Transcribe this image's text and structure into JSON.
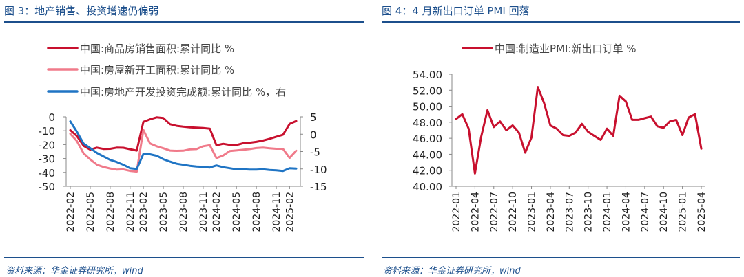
{
  "panels": [
    {
      "title": "图 3：地产销售、投资增速仍偏弱",
      "source": "资料来源：华金证券研究所，wind"
    },
    {
      "title": "图 4：4 月新出口订单 PMI 回落",
      "source": "资料来源：华金证券研究所，wind"
    }
  ],
  "chart_data": [
    {
      "type": "line",
      "title": "图 3：地产销售、投资增速仍偏弱",
      "categories": [
        "2022-02",
        "2022-03",
        "2022-04",
        "2022-05",
        "2022-06",
        "2022-07",
        "2022-08",
        "2022-09",
        "2022-10",
        "2022-11",
        "2022-12",
        "2023-02",
        "2023-03",
        "2023-04",
        "2023-05",
        "2023-06",
        "2023-07",
        "2023-08",
        "2023-09",
        "2023-10",
        "2023-11",
        "2023-12",
        "2024-02",
        "2024-03",
        "2024-04",
        "2024-05",
        "2024-06",
        "2024-07",
        "2024-08",
        "2024-09",
        "2024-10",
        "2024-11",
        "2024-12",
        "2025-02",
        "2025-03"
      ],
      "x_tick_labels": [
        "2022-02",
        "2022-05",
        "2022-08",
        "2022-11",
        "2023-02",
        "2023-05",
        "2023-08",
        "2023-11",
        "2024-02",
        "2024-05",
        "2024-08",
        "2024-11",
        "2025-02"
      ],
      "left_axis": {
        "ylim": [
          -50,
          0
        ],
        "ticks": [
          "0",
          "-10",
          "-20",
          "-30",
          "-40",
          "-50"
        ]
      },
      "right_axis": {
        "ylim": [
          -15,
          5
        ],
        "ticks": [
          "5",
          "0",
          "-5",
          "-10",
          "-15"
        ]
      },
      "series": [
        {
          "name": "中国:商品房销售面积:累计同比 %",
          "color": "#c8102e",
          "axis": "left",
          "values": [
            -9.6,
            -13.8,
            -20.9,
            -23.6,
            -22.2,
            -23.1,
            -23.0,
            -22.2,
            -22.3,
            -23.3,
            -24.3,
            -3.6,
            -1.8,
            -0.4,
            -0.9,
            -5.3,
            -6.5,
            -7.1,
            -7.5,
            -7.8,
            -8.0,
            -8.5,
            -20.5,
            -19.4,
            -20.2,
            -20.3,
            -19.0,
            -18.6,
            -18.0,
            -17.1,
            -15.8,
            -14.3,
            -12.9,
            -5.1,
            -3.0
          ]
        },
        {
          "name": "中国:房屋新开工面积:累计同比 %",
          "color": "#f07a8a",
          "axis": "left",
          "values": [
            -12.2,
            -17.5,
            -26.3,
            -30.6,
            -34.4,
            -36.1,
            -37.2,
            -38.0,
            -37.8,
            -38.9,
            -39.4,
            -9.4,
            -19.2,
            -21.2,
            -22.6,
            -24.3,
            -24.5,
            -24.4,
            -23.4,
            -23.2,
            -21.2,
            -20.4,
            -29.7,
            -27.8,
            -24.6,
            -24.2,
            -23.7,
            -23.2,
            -22.5,
            -22.2,
            -22.6,
            -23.0,
            -23.0,
            -29.6,
            -24.4
          ]
        },
        {
          "name": "中国:房地产开发投资完成额:累计同比 %，右",
          "color": "#1f74c4",
          "axis": "right",
          "values": [
            3.7,
            0.7,
            -2.7,
            -4.0,
            -5.4,
            -6.4,
            -7.4,
            -8.0,
            -8.8,
            -9.8,
            -10.0,
            -5.7,
            -5.8,
            -6.2,
            -7.2,
            -7.9,
            -8.5,
            -8.8,
            -9.1,
            -9.3,
            -9.4,
            -9.6,
            -9.0,
            -9.5,
            -9.8,
            -10.1,
            -10.1,
            -10.2,
            -10.2,
            -10.1,
            -10.3,
            -10.4,
            -10.6,
            -9.8,
            -9.9
          ]
        }
      ]
    },
    {
      "type": "line",
      "title": "图 4：4 月新出口订单 PMI 回落",
      "categories": [
        "2022-01",
        "2022-02",
        "2022-03",
        "2022-04",
        "2022-05",
        "2022-06",
        "2022-07",
        "2022-08",
        "2022-09",
        "2022-10",
        "2022-11",
        "2022-12",
        "2023-01",
        "2023-02",
        "2023-03",
        "2023-04",
        "2023-05",
        "2023-06",
        "2023-07",
        "2023-08",
        "2023-09",
        "2023-10",
        "2023-11",
        "2023-12",
        "2024-01",
        "2024-02",
        "2024-03",
        "2024-04",
        "2024-05",
        "2024-06",
        "2024-07",
        "2024-08",
        "2024-09",
        "2024-10",
        "2024-11",
        "2024-12",
        "2025-01",
        "2025-02",
        "2025-03",
        "2025-04"
      ],
      "x_tick_labels": [
        "2022-01",
        "2022-04",
        "2022-07",
        "2022-10",
        "2023-01",
        "2023-04",
        "2023-07",
        "2023-10",
        "2024-01",
        "2024-04",
        "2024-07",
        "2024-10",
        "2025-01",
        "2025-04"
      ],
      "ylim": [
        40,
        54
      ],
      "y_ticks": [
        "54.00",
        "52.00",
        "50.00",
        "48.00",
        "46.00",
        "44.00",
        "42.00",
        "40.00"
      ],
      "series": [
        {
          "name": "中国:制造业PMI:新出口订单 %",
          "color": "#c8102e",
          "values": [
            48.4,
            49.0,
            47.2,
            41.6,
            46.2,
            49.5,
            47.4,
            48.1,
            47.0,
            47.6,
            46.7,
            44.2,
            46.1,
            52.4,
            50.4,
            47.6,
            47.2,
            46.4,
            46.3,
            46.7,
            47.8,
            46.8,
            46.3,
            45.8,
            47.2,
            46.3,
            51.3,
            50.6,
            48.3,
            48.3,
            48.5,
            48.7,
            47.5,
            47.3,
            48.1,
            48.3,
            46.4,
            48.6,
            49.0,
            44.7
          ]
        }
      ]
    }
  ]
}
